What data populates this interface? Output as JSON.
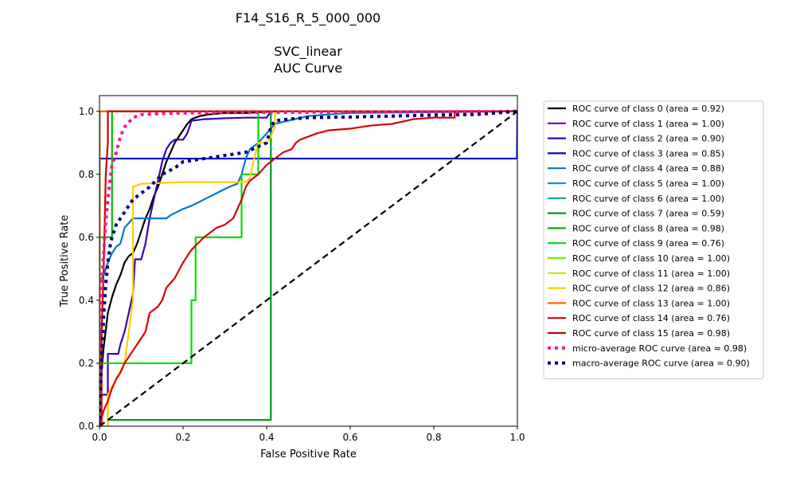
{
  "chart_data": {
    "type": "line",
    "title_lines": [
      "F14_S16_R_5_000_000",
      "",
      "SVC_linear",
      "AUC Curve"
    ],
    "xlabel": "False Positive Rate",
    "ylabel": "True Positive Rate",
    "xlim": [
      0.0,
      1.0
    ],
    "ylim": [
      0.0,
      1.05
    ],
    "xticks": [
      "0.0",
      "0.2",
      "0.4",
      "0.6",
      "0.8",
      "1.0"
    ],
    "yticks": [
      "0.0",
      "0.2",
      "0.4",
      "0.6",
      "0.8",
      "1.0"
    ],
    "grid": false,
    "legend_position": "outside-right",
    "series": [
      {
        "name": "ROC curve of class 0 (area = 0.92)",
        "color": "#000000",
        "style": "solid",
        "x": [
          0,
          0,
          0.01,
          0.02,
          0.03,
          0.04,
          0.05,
          0.06,
          0.07,
          0.08,
          0.09,
          0.1,
          0.11,
          0.12,
          0.13,
          0.14,
          0.15,
          0.16,
          0.17,
          0.18,
          0.19,
          0.2,
          0.21,
          0.22,
          0.24,
          0.26,
          0.3,
          0.35,
          0.42,
          1.0
        ],
        "y": [
          0,
          0.1,
          0.25,
          0.36,
          0.41,
          0.45,
          0.48,
          0.52,
          0.54,
          0.55,
          0.58,
          0.62,
          0.66,
          0.69,
          0.73,
          0.76,
          0.8,
          0.84,
          0.87,
          0.9,
          0.92,
          0.94,
          0.96,
          0.975,
          0.985,
          0.99,
          0.995,
          0.995,
          1.0,
          1.0
        ]
      },
      {
        "name": "ROC curve of class 1 (area = 1.00)",
        "color": "#7a00a0",
        "style": "solid",
        "x": [
          0,
          0,
          1.0
        ],
        "y": [
          0,
          1.0,
          1.0
        ]
      },
      {
        "name": "ROC curve of class 2 (area = 0.90)",
        "color": "#3d00ad",
        "style": "solid",
        "x": [
          0,
          0,
          0.02,
          0.02,
          0.045,
          0.05,
          0.06,
          0.07,
          0.08,
          0.085,
          0.1,
          0.11,
          0.12,
          0.13,
          0.14,
          0.15,
          0.16,
          0.17,
          0.18,
          0.2,
          0.21,
          0.22,
          0.25,
          0.3,
          0.35,
          0.4,
          0.41,
          0.42,
          0.6,
          1.0
        ],
        "y": [
          0,
          0.1,
          0.1,
          0.23,
          0.23,
          0.26,
          0.3,
          0.36,
          0.42,
          0.53,
          0.53,
          0.58,
          0.66,
          0.72,
          0.78,
          0.84,
          0.88,
          0.9,
          0.91,
          0.91,
          0.93,
          0.97,
          0.975,
          0.978,
          0.98,
          0.98,
          1.0,
          1.0,
          1.0,
          1.0
        ]
      },
      {
        "name": "ROC curve of class 3 (area = 0.85)",
        "color": "#0000c8",
        "style": "solid",
        "x": [
          0,
          0,
          0.999,
          1.0
        ],
        "y": [
          0,
          0.85,
          0.85,
          1.0
        ]
      },
      {
        "name": "ROC curve of class 4 (area = 0.88)",
        "color": "#0077d6",
        "style": "solid",
        "x": [
          0,
          0,
          0.01,
          0.02,
          0.03,
          0.04,
          0.05,
          0.06,
          0.08,
          0.1,
          0.16,
          0.17,
          0.2,
          0.22,
          0.25,
          0.28,
          0.31,
          0.33,
          0.34,
          0.35,
          0.36,
          0.38,
          0.4,
          0.42,
          0.45,
          0.5,
          0.55,
          0.6,
          1.0
        ],
        "y": [
          0,
          0.46,
          0.48,
          0.52,
          0.55,
          0.57,
          0.58,
          0.63,
          0.66,
          0.66,
          0.66,
          0.67,
          0.69,
          0.7,
          0.72,
          0.74,
          0.76,
          0.77,
          0.8,
          0.85,
          0.88,
          0.9,
          0.93,
          0.96,
          0.97,
          0.985,
          0.99,
          0.995,
          1.0
        ]
      },
      {
        "name": "ROC curve of class 5 (area = 1.00)",
        "color": "#0099d6",
        "style": "solid",
        "x": [
          0,
          0,
          1.0
        ],
        "y": [
          0,
          1.0,
          1.0
        ]
      },
      {
        "name": "ROC curve of class 6 (area = 1.00)",
        "color": "#00a89a",
        "style": "solid",
        "x": [
          0,
          0,
          1.0
        ],
        "y": [
          0,
          1.0,
          1.0
        ]
      },
      {
        "name": "ROC curve of class 7 (area = 0.59)",
        "color": "#009922",
        "style": "solid",
        "x": [
          0,
          0.02,
          0.02,
          0.41,
          0.41,
          1.0
        ],
        "y": [
          0,
          0,
          0.02,
          0.02,
          1.0,
          1.0
        ]
      },
      {
        "name": "ROC curve of class 8 (area = 0.98)",
        "color": "#00b800",
        "style": "solid",
        "x": [
          0,
          0,
          0.03,
          0.03,
          1.0
        ],
        "y": [
          0,
          0.6,
          0.6,
          1.0,
          1.0
        ]
      },
      {
        "name": "ROC curve of class 9 (area = 0.76)",
        "color": "#00dd00",
        "style": "solid",
        "x": [
          0,
          0,
          0.22,
          0.22,
          0.23,
          0.23,
          0.34,
          0.34,
          0.38,
          0.38,
          1.0
        ],
        "y": [
          0,
          0.2,
          0.2,
          0.4,
          0.4,
          0.6,
          0.6,
          0.8,
          0.8,
          1.0,
          1.0
        ]
      },
      {
        "name": "ROC curve of class 10 (area = 1.00)",
        "color": "#77ee00",
        "style": "solid",
        "x": [
          0,
          0,
          1.0
        ],
        "y": [
          0,
          1.0,
          1.0
        ]
      },
      {
        "name": "ROC curve of class 11 (area = 1.00)",
        "color": "#c8e600",
        "style": "solid",
        "x": [
          0,
          0,
          1.0
        ],
        "y": [
          0,
          1.0,
          1.0
        ]
      },
      {
        "name": "ROC curve of class 12 (area = 0.86)",
        "color": "#ffcc00",
        "style": "solid",
        "x": [
          0,
          0.02,
          0.02,
          0.06,
          0.065,
          0.08,
          0.08,
          0.1,
          0.2,
          0.35,
          0.36,
          0.37,
          0.38,
          0.4,
          0.41,
          0.42,
          0.42,
          1.0
        ],
        "y": [
          0,
          0,
          0.1,
          0.2,
          0.25,
          0.4,
          0.76,
          0.77,
          0.775,
          0.775,
          0.79,
          0.85,
          0.9,
          0.9,
          0.92,
          0.95,
          1.0,
          1.0
        ]
      },
      {
        "name": "ROC curve of class 13 (area = 1.00)",
        "color": "#ff6600",
        "style": "solid",
        "x": [
          0,
          0,
          1.0
        ],
        "y": [
          0,
          1.0,
          1.0
        ]
      },
      {
        "name": "ROC curve of class 14 (area = 0.76)",
        "color": "#dd0000",
        "style": "solid",
        "x": [
          0,
          0.01,
          0.02,
          0.03,
          0.04,
          0.05,
          0.06,
          0.08,
          0.1,
          0.11,
          0.12,
          0.14,
          0.15,
          0.16,
          0.18,
          0.2,
          0.22,
          0.25,
          0.28,
          0.3,
          0.32,
          0.34,
          0.35,
          0.36,
          0.38,
          0.4,
          0.42,
          0.44,
          0.46,
          0.47,
          0.48,
          0.5,
          0.52,
          0.55,
          0.6,
          0.65,
          0.7,
          0.75,
          0.8,
          0.85,
          0.85,
          1.0
        ],
        "y": [
          0,
          0.05,
          0.08,
          0.12,
          0.15,
          0.17,
          0.2,
          0.24,
          0.28,
          0.3,
          0.36,
          0.38,
          0.4,
          0.44,
          0.47,
          0.52,
          0.56,
          0.6,
          0.63,
          0.64,
          0.66,
          0.72,
          0.76,
          0.78,
          0.8,
          0.83,
          0.85,
          0.87,
          0.88,
          0.9,
          0.91,
          0.92,
          0.93,
          0.94,
          0.945,
          0.955,
          0.96,
          0.975,
          0.98,
          0.98,
          1.0,
          1.0
        ]
      },
      {
        "name": "ROC curve of class 15 (area = 0.98)",
        "color": "#cc0000",
        "style": "solid",
        "x": [
          0,
          0.005,
          0.005,
          0.01,
          0.015,
          0.02,
          0.02,
          1.0
        ],
        "y": [
          0,
          0,
          0.3,
          0.5,
          0.8,
          0.9,
          1.0,
          1.0
        ]
      },
      {
        "name": "micro-average ROC curve (area = 0.98)",
        "color": "#ff1493",
        "style": "dotted",
        "x": [
          0,
          0,
          0.005,
          0.01,
          0.015,
          0.02,
          0.025,
          0.03,
          0.04,
          0.05,
          0.06,
          0.08,
          0.1,
          0.15,
          0.2,
          0.3,
          0.5,
          0.7,
          0.85,
          1.0
        ],
        "y": [
          0,
          0.3,
          0.45,
          0.55,
          0.65,
          0.72,
          0.78,
          0.83,
          0.87,
          0.92,
          0.95,
          0.98,
          0.99,
          0.993,
          0.995,
          0.996,
          0.997,
          0.998,
          0.999,
          1.0
        ]
      },
      {
        "name": "macro-average ROC curve (area = 0.90)",
        "color": "#000080",
        "style": "dotted",
        "x": [
          0,
          0,
          0.005,
          0.01,
          0.015,
          0.02,
          0.025,
          0.03,
          0.04,
          0.05,
          0.06,
          0.08,
          0.1,
          0.12,
          0.15,
          0.18,
          0.2,
          0.25,
          0.3,
          0.35,
          0.4,
          0.41,
          0.42,
          0.45,
          0.5,
          0.6,
          0.7,
          0.8,
          0.9,
          1.0
        ],
        "y": [
          0,
          0.08,
          0.2,
          0.35,
          0.45,
          0.52,
          0.57,
          0.6,
          0.64,
          0.66,
          0.68,
          0.72,
          0.74,
          0.76,
          0.8,
          0.82,
          0.84,
          0.85,
          0.86,
          0.87,
          0.9,
          0.95,
          0.97,
          0.975,
          0.98,
          0.982,
          0.985,
          0.988,
          0.99,
          1.0
        ]
      }
    ],
    "reference_line": {
      "x": [
        0,
        1
      ],
      "y": [
        0,
        1
      ],
      "color": "#000000",
      "style": "dashed"
    }
  }
}
